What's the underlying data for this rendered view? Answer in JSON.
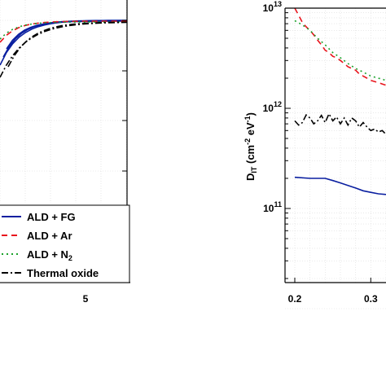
{
  "chart_data": [
    {
      "type": "line",
      "panel": "left",
      "x_tick_labels": [
        "5"
      ],
      "legend": [
        {
          "label": "ALD + FG",
          "color": "#0a1fa0",
          "dash": "solid"
        },
        {
          "label": "ALD + Ar",
          "color": "#e8141c",
          "dash": "dashed"
        },
        {
          "label": "ALD + N",
          "sub": "2",
          "color": "#1aa12a",
          "dash": "dotted"
        },
        {
          "label": "Thermal oxide",
          "color": "#000000",
          "dash": "dash-dot"
        }
      ],
      "legend_position": "bottom-right",
      "grid": true
    },
    {
      "type": "line",
      "panel": "right",
      "y_scale": "log",
      "ylim": [
        10000000000.0,
        10000000000000.0
      ],
      "xlim": [
        0.2,
        0.32
      ],
      "grid": true,
      "ylabel": {
        "base": "D",
        "sub": "IT",
        "units_a": " (cm",
        "sup_a": "-2",
        "units_b": " eV",
        "sup_b": "-1",
        "units_c": ")"
      },
      "y_tick_labels": [
        {
          "base": "10",
          "exp": "13",
          "value": 10000000000000.0
        },
        {
          "base": "10",
          "exp": "12",
          "value": 1000000000000.0
        },
        {
          "base": "10",
          "exp": "11",
          "value": 100000000000.0
        }
      ],
      "x_tick_labels": [
        {
          "label": "0.2",
          "value": 0.2
        },
        {
          "label": "0.3",
          "value": 0.3
        }
      ],
      "series": [
        {
          "color": "#e8141c",
          "dash": "dashed",
          "x": [
            0.2,
            0.205,
            0.21,
            0.215,
            0.22,
            0.225,
            0.23,
            0.235,
            0.24,
            0.245,
            0.25,
            0.255,
            0.26,
            0.265,
            0.27,
            0.275,
            0.28,
            0.285,
            0.29,
            0.295,
            0.3,
            0.305,
            0.31,
            0.315,
            0.32
          ],
          "y": [
            10000000000000.0,
            8500000000000.0,
            7200000000000.0,
            6500000000000.0,
            6000000000000.0,
            5400000000000.0,
            4800000000000.0,
            4300000000000.0,
            3800000000000.0,
            3600000000000.0,
            3300000000000.0,
            3200000000000.0,
            3000000000000.0,
            2800000000000.0,
            2600000000000.0,
            2500000000000.0,
            2400000000000.0,
            2200000000000.0,
            2100000000000.0,
            2000000000000.0,
            1900000000000.0,
            1850000000000.0,
            1800000000000.0,
            1750000000000.0,
            1700000000000.0
          ]
        },
        {
          "color": "#1aa12a",
          "dash": "dotted",
          "x": [
            0.2,
            0.21,
            0.22,
            0.23,
            0.24,
            0.25,
            0.26,
            0.27,
            0.28,
            0.29,
            0.3,
            0.31,
            0.32
          ],
          "y": [
            7500000000000.0,
            6800000000000.0,
            6000000000000.0,
            5000000000000.0,
            4300000000000.0,
            3600000000000.0,
            3200000000000.0,
            2800000000000.0,
            2500000000000.0,
            2300000000000.0,
            2100000000000.0,
            2000000000000.0,
            1900000000000.0
          ]
        },
        {
          "color": "#000000",
          "dash": "dash-dot",
          "x": [
            0.2,
            0.205,
            0.21,
            0.215,
            0.22,
            0.225,
            0.23,
            0.235,
            0.24,
            0.245,
            0.25,
            0.255,
            0.26,
            0.265,
            0.27,
            0.275,
            0.28,
            0.285,
            0.29,
            0.295,
            0.3,
            0.305,
            0.31,
            0.315,
            0.32
          ],
          "y": [
            750000000000.0,
            680000000000.0,
            720000000000.0,
            860000000000.0,
            800000000000.0,
            700000000000.0,
            750000000000.0,
            850000000000.0,
            720000000000.0,
            880000000000.0,
            750000000000.0,
            820000000000.0,
            700000000000.0,
            800000000000.0,
            680000000000.0,
            800000000000.0,
            750000000000.0,
            650000000000.0,
            720000000000.0,
            650000000000.0,
            600000000000.0,
            620000000000.0,
            580000000000.0,
            600000000000.0,
            550000000000.0
          ]
        },
        {
          "color": "#0a1fa0",
          "dash": "solid",
          "x": [
            0.2,
            0.22,
            0.24,
            0.25,
            0.26,
            0.27,
            0.28,
            0.29,
            0.3,
            0.31,
            0.32
          ],
          "y": [
            205000000000.0,
            200000000000.0,
            200000000000.0,
            190000000000.0,
            180000000000.0,
            170000000000.0,
            160000000000.0,
            150000000000.0,
            145000000000.0,
            140000000000.0,
            138000000000.0
          ]
        }
      ]
    }
  ]
}
